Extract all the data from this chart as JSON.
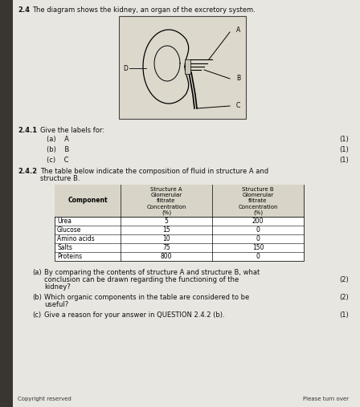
{
  "bg_outer": "#b0a898",
  "bg_page": "#e8e6e0",
  "bg_left_dark": "#3a3530",
  "title_num": "2.4",
  "title_text": "The diagram shows the kidney, an organ of the excretory system.",
  "s241": "2.4.1",
  "give_labels": "Give the labels for:",
  "item_a": "(a)    A",
  "item_b": "(b)    B",
  "item_c": "(c)    C",
  "mark1": "(1)",
  "s242": "2.4.2",
  "table_intro_1": "The table below indicate the composition of fluid in structure A and",
  "table_intro_2": "structure B.",
  "col_headers": [
    "Component",
    "Structure A\nGlomerular\nfiltrate\nConcentration\n(%)",
    "Structure B\nGlomerular\nfiltrate\nConcentration\n(%)"
  ],
  "table_rows": [
    [
      "Urea",
      "5",
      "200"
    ],
    [
      "Glucose",
      "15",
      "0"
    ],
    [
      "Amino acids",
      "10",
      "0"
    ],
    [
      "Salts",
      "75",
      "150"
    ],
    [
      "Proteins",
      "800",
      "0"
    ]
  ],
  "qa_label": "(a)",
  "qa_line1": "By comparing the contents of structure A and structure B, what",
  "qa_line2": "conclusion can be drawn regarding the functioning of the",
  "qa_line3": "kidney?",
  "qa_mark": "(2)",
  "qb_label": "(b)",
  "qb_line1": "Which organic components in the table are considered to be",
  "qb_line2": "useful?",
  "qb_mark": "(2)",
  "qc_label": "(c)",
  "qc_line1": "Give a reason for your answer in QUESTION 2.4.2 (b).",
  "qc_mark": "(1)",
  "footer_left": "Copyright reserved",
  "footer_right": "Please turn over"
}
